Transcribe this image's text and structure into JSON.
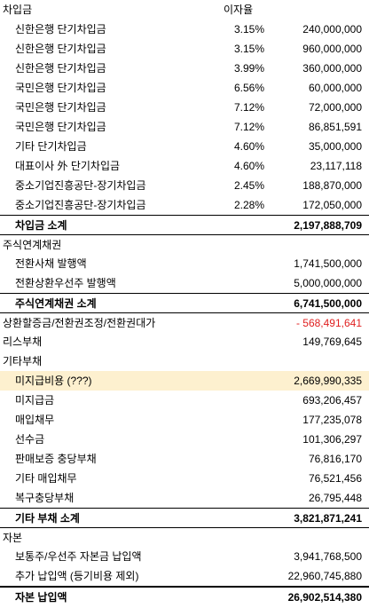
{
  "header": {
    "section": "차입금",
    "rate_header": "이자율"
  },
  "borrowings": {
    "items": [
      {
        "label": "신한은행 단기차입금",
        "rate": "3.15%",
        "amount": "240,000,000"
      },
      {
        "label": "신한은행 단기차입금",
        "rate": "3.15%",
        "amount": "960,000,000"
      },
      {
        "label": "신한은행 단기차입금",
        "rate": "3.99%",
        "amount": "360,000,000"
      },
      {
        "label": "국민은행 단기차입금",
        "rate": "6.56%",
        "amount": "60,000,000"
      },
      {
        "label": "국민은행 단기차입금",
        "rate": "7.12%",
        "amount": "72,000,000"
      },
      {
        "label": "국민은행 단기차입금",
        "rate": "7.12%",
        "amount": "86,851,591"
      },
      {
        "label": "기타 단기차입금",
        "rate": "4.60%",
        "amount": "35,000,000"
      },
      {
        "label": "대표이사 外 단기차입금",
        "rate": "4.60%",
        "amount": "23,117,118"
      },
      {
        "label": "중소기업진흥공단-장기차입금",
        "rate": "2.45%",
        "amount": "188,870,000"
      },
      {
        "label": "중소기업진흥공단-장기차입금",
        "rate": "2.28%",
        "amount": "172,050,000"
      }
    ],
    "subtotal_label": "차입금 소계",
    "subtotal_amount": "2,197,888,709"
  },
  "equity_linked": {
    "section": "주식연계채권",
    "items": [
      {
        "label": "전환사채 발행액",
        "amount": "1,741,500,000"
      },
      {
        "label": "전환상환우선주 발행액",
        "amount": "5,000,000,000"
      }
    ],
    "subtotal_label": "주식연계채권 소계",
    "subtotal_amount": "6,741,500,000"
  },
  "adjustment": {
    "label": "상환할증금/전환권조정/전환권대가",
    "amount": "- 568,491,641"
  },
  "lease": {
    "label": "리스부채",
    "amount": "149,769,645"
  },
  "other_liabilities": {
    "section": "기타부채",
    "items": [
      {
        "label": "미지급비용 (???)",
        "amount": "2,669,990,335"
      },
      {
        "label": "미지급금",
        "amount": "693,206,457"
      },
      {
        "label": "매입채무",
        "amount": "177,235,078"
      },
      {
        "label": "선수금",
        "amount": "101,306,297"
      },
      {
        "label": "판매보증 충당부채",
        "amount": "76,816,170"
      },
      {
        "label": "기타 매입채무",
        "amount": "76,521,456"
      },
      {
        "label": "복구충당부채",
        "amount": "26,795,448"
      }
    ],
    "subtotal_label": "기타 부채 소계",
    "subtotal_amount": "3,821,871,241"
  },
  "capital": {
    "section": "자본",
    "items": [
      {
        "label": "보통주/우선주 자본금 납입액",
        "amount": "3,941,768,500"
      },
      {
        "label": "추가 납입액 (등기비용 제외)",
        "amount": "22,960,745,880"
      }
    ],
    "total_label": "자본 납입액",
    "total_amount": "26,902,514,380"
  },
  "colors": {
    "highlight": "#fdf0cf",
    "negative": "#e02020"
  }
}
